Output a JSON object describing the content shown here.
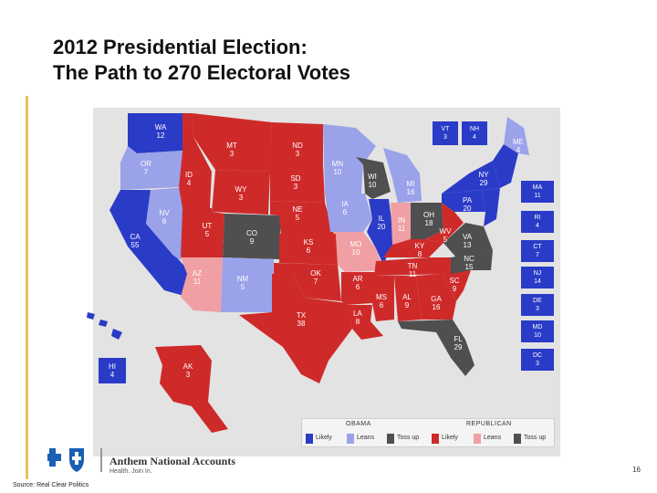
{
  "title": {
    "line1": "2012 Presidential Election:",
    "line2": "The Path to 270 Electoral Votes"
  },
  "colors": {
    "obama_likely": "#2a3bc7",
    "obama_leans": "#9aa2ea",
    "toss_up": "#4f4f4f",
    "rep_likely": "#cf2a2a",
    "rep_leans": "#f0a0a4"
  },
  "legend": {
    "obama_header": "OBAMA",
    "republican_header": "REPUBLICAN",
    "items": [
      {
        "label": "Likely",
        "color": "#2a3bc7"
      },
      {
        "label": "Leans",
        "color": "#9aa2ea"
      },
      {
        "label": "Toss up",
        "color": "#4f4f4f"
      },
      {
        "label": "Likely",
        "color": "#cf2a2a"
      },
      {
        "label": "Leans",
        "color": "#f0a0a4"
      },
      {
        "label": "Toss up",
        "color": "#4f4f4f"
      }
    ]
  },
  "states": [
    {
      "abbr": "WA",
      "votes": "12"
    },
    {
      "abbr": "OR",
      "votes": "7"
    },
    {
      "abbr": "CA",
      "votes": "55"
    },
    {
      "abbr": "NV",
      "votes": "6"
    },
    {
      "abbr": "ID",
      "votes": "4"
    },
    {
      "abbr": "MT",
      "votes": "3"
    },
    {
      "abbr": "WY",
      "votes": "3"
    },
    {
      "abbr": "UT",
      "votes": "5"
    },
    {
      "abbr": "CO",
      "votes": "9"
    },
    {
      "abbr": "AZ",
      "votes": "11"
    },
    {
      "abbr": "NM",
      "votes": "5"
    },
    {
      "abbr": "ND",
      "votes": "3"
    },
    {
      "abbr": "SD",
      "votes": "3"
    },
    {
      "abbr": "NE",
      "votes": "5"
    },
    {
      "abbr": "KS",
      "votes": "6"
    },
    {
      "abbr": "OK",
      "votes": "7"
    },
    {
      "abbr": "TX",
      "votes": "38"
    },
    {
      "abbr": "MN",
      "votes": "10"
    },
    {
      "abbr": "IA",
      "votes": "6"
    },
    {
      "abbr": "MO",
      "votes": "10"
    },
    {
      "abbr": "AR",
      "votes": "6"
    },
    {
      "abbr": "LA",
      "votes": "8"
    },
    {
      "abbr": "WI",
      "votes": "10"
    },
    {
      "abbr": "IL",
      "votes": "20"
    },
    {
      "abbr": "MI",
      "votes": "16"
    },
    {
      "abbr": "IN",
      "votes": "11"
    },
    {
      "abbr": "OH",
      "votes": "18"
    },
    {
      "abbr": "KY",
      "votes": "8"
    },
    {
      "abbr": "TN",
      "votes": "11"
    },
    {
      "abbr": "MS",
      "votes": "6"
    },
    {
      "abbr": "AL",
      "votes": "9"
    },
    {
      "abbr": "GA",
      "votes": "16"
    },
    {
      "abbr": "FL",
      "votes": "29"
    },
    {
      "abbr": "SC",
      "votes": "9"
    },
    {
      "abbr": "NC",
      "votes": "15"
    },
    {
      "abbr": "VA",
      "votes": "13"
    },
    {
      "abbr": "WV",
      "votes": "5"
    },
    {
      "abbr": "PA",
      "votes": "20"
    },
    {
      "abbr": "NY",
      "votes": "29"
    },
    {
      "abbr": "ME",
      "votes": "4"
    },
    {
      "abbr": "AK",
      "votes": "3"
    },
    {
      "abbr": "HI",
      "votes": "4"
    }
  ],
  "top_boxes": [
    {
      "abbr": "VT",
      "votes": "3"
    },
    {
      "abbr": "NH",
      "votes": "4"
    }
  ],
  "side_boxes": [
    {
      "abbr": "MA",
      "votes": "11"
    },
    {
      "abbr": "RI",
      "votes": "4"
    },
    {
      "abbr": "CT",
      "votes": "7"
    },
    {
      "abbr": "NJ",
      "votes": "14"
    },
    {
      "abbr": "DE",
      "votes": "3"
    },
    {
      "abbr": "MD",
      "votes": "10"
    },
    {
      "abbr": "DC",
      "votes": "3"
    }
  ],
  "footer": {
    "brand": "Anthem National Accounts",
    "tagline": "Health. Join In.",
    "page_number": "16",
    "source": "Source: Real Clear Politics"
  }
}
